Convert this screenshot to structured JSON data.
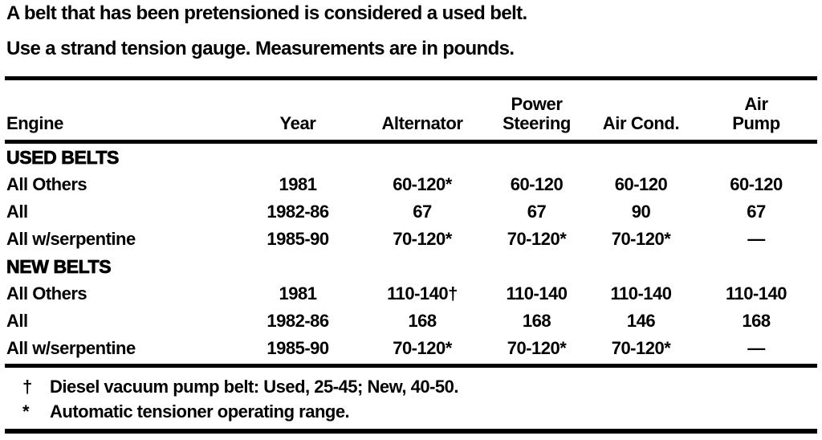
{
  "intro": {
    "line1": "A belt that has been pretensioned is considered a used belt.",
    "line2": "Use a strand tension gauge. Measurements are in pounds."
  },
  "table": {
    "columns": [
      {
        "lines": [
          "Engine"
        ]
      },
      {
        "lines": [
          "Year"
        ]
      },
      {
        "lines": [
          "Alternator"
        ]
      },
      {
        "lines": [
          "Power",
          "Steering"
        ]
      },
      {
        "lines": [
          "Air Cond."
        ]
      },
      {
        "lines": [
          "Air",
          "Pump"
        ]
      }
    ],
    "sections": [
      {
        "header": "USED BELTS",
        "rows": [
          {
            "engine": "All Others",
            "year": "1981",
            "alternator": "60-120*",
            "power_steering": "60-120",
            "air_cond": "60-120",
            "air_pump": "60-120"
          },
          {
            "engine": "All",
            "year": "1982-86",
            "alternator": "67",
            "power_steering": "67",
            "air_cond": "90",
            "air_pump": "67"
          },
          {
            "engine": "All w/serpentine",
            "year": "1985-90",
            "alternator": "70-120*",
            "power_steering": "70-120*",
            "air_cond": "70-120*",
            "air_pump": "—"
          }
        ]
      },
      {
        "header": "NEW BELTS",
        "rows": [
          {
            "engine": "All Others",
            "year": "1981",
            "alternator": "110-140†",
            "power_steering": "110-140",
            "air_cond": "110-140",
            "air_pump": "110-140"
          },
          {
            "engine": "All",
            "year": "1982-86",
            "alternator": "168",
            "power_steering": "168",
            "air_cond": "146",
            "air_pump": "168"
          },
          {
            "engine": "All w/serpentine",
            "year": "1985-90",
            "alternator": "70-120*",
            "power_steering": "70-120*",
            "air_cond": "70-120*",
            "air_pump": "—"
          }
        ]
      }
    ],
    "footnotes": [
      {
        "symbol": "†",
        "text": "Diesel vacuum pump belt: Used, 25-45; New, 40-50."
      },
      {
        "symbol": "*",
        "text": "Automatic tensioner operating range."
      }
    ]
  },
  "colors": {
    "ink": "#000000",
    "paper": "#ffffff"
  }
}
